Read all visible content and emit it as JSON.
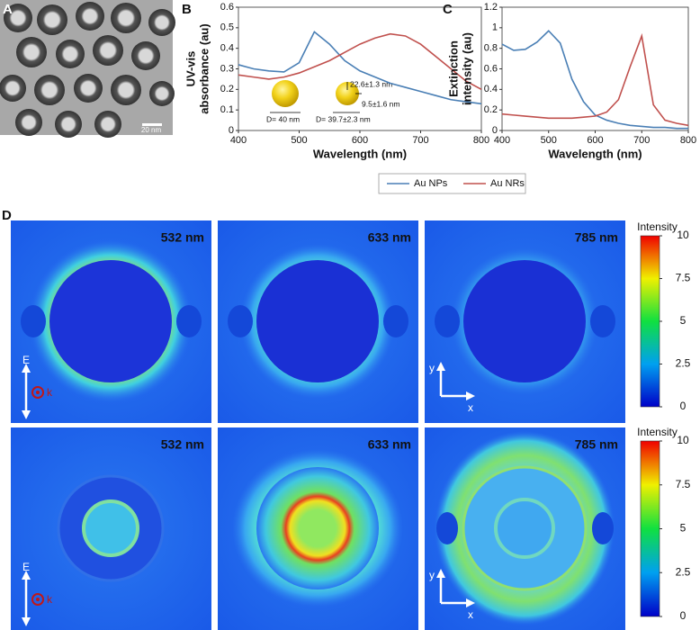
{
  "panel_labels": [
    "A",
    "B",
    "C",
    "D"
  ],
  "tem_image": {
    "scale_bar": "20 nm"
  },
  "chart_data": [
    {
      "type": "line",
      "xlabel": "Wavelength (nm)",
      "ylabel": [
        "UV-vis",
        "absorbance (au)"
      ],
      "x": [
        400,
        425,
        450,
        475,
        500,
        525,
        550,
        575,
        600,
        625,
        650,
        675,
        700,
        725,
        750,
        775,
        800
      ],
      "series": [
        {
          "name": "Au NPs",
          "color": "#4a7fb5",
          "values": [
            0.32,
            0.3,
            0.29,
            0.285,
            0.33,
            0.48,
            0.42,
            0.34,
            0.29,
            0.26,
            0.23,
            0.21,
            0.19,
            0.17,
            0.15,
            0.14,
            0.13
          ]
        },
        {
          "name": "Au NRs",
          "color": "#c0504d",
          "values": [
            0.27,
            0.26,
            0.25,
            0.26,
            0.28,
            0.31,
            0.34,
            0.38,
            0.42,
            0.45,
            0.47,
            0.46,
            0.42,
            0.36,
            0.3,
            0.24,
            0.2
          ]
        }
      ],
      "xlim": [
        400,
        800
      ],
      "xticks": [
        400,
        500,
        600,
        700,
        800
      ],
      "ylim": [
        0,
        0.6
      ],
      "yticks": [
        0,
        0.1,
        0.2,
        0.3,
        0.4,
        0.5,
        0.6
      ],
      "annotations": [
        "D= 40 nm",
        "D= 39.7±2.3 nm",
        "22.6±1.3 nm",
        "9.5±1.6 nm"
      ]
    },
    {
      "type": "line",
      "xlabel": "Wavelength (nm)",
      "ylabel": [
        "Extinction",
        "intensity (au)"
      ],
      "x": [
        400,
        425,
        450,
        475,
        500,
        525,
        550,
        575,
        600,
        625,
        650,
        675,
        700,
        725,
        750,
        775,
        800
      ],
      "series": [
        {
          "name": "Au NPs",
          "color": "#4a7fb5",
          "values": [
            0.84,
            0.78,
            0.79,
            0.86,
            0.97,
            0.85,
            0.5,
            0.28,
            0.15,
            0.1,
            0.07,
            0.05,
            0.04,
            0.03,
            0.03,
            0.02,
            0.02
          ]
        },
        {
          "name": "Au NRs",
          "color": "#c0504d",
          "values": [
            0.16,
            0.15,
            0.14,
            0.13,
            0.12,
            0.12,
            0.12,
            0.13,
            0.14,
            0.18,
            0.3,
            0.62,
            0.92,
            0.25,
            0.1,
            0.07,
            0.05
          ]
        }
      ],
      "xlim": [
        400,
        800
      ],
      "xticks": [
        400,
        500,
        600,
        700,
        800
      ],
      "ylim": [
        0,
        1.2
      ],
      "yticks": [
        0,
        0.2,
        0.4,
        0.6,
        0.8,
        1,
        1.2
      ]
    }
  ],
  "field_maps": {
    "wavelengths": [
      "532 nm",
      "633 nm",
      "785 nm"
    ],
    "polarization": "E",
    "propagation": "k",
    "axes": [
      "x",
      "y"
    ],
    "colorbar": {
      "title": "Intensity",
      "lim": [
        0,
        10
      ],
      "ticks": [
        0,
        2.5,
        5,
        7.5,
        10
      ]
    }
  }
}
